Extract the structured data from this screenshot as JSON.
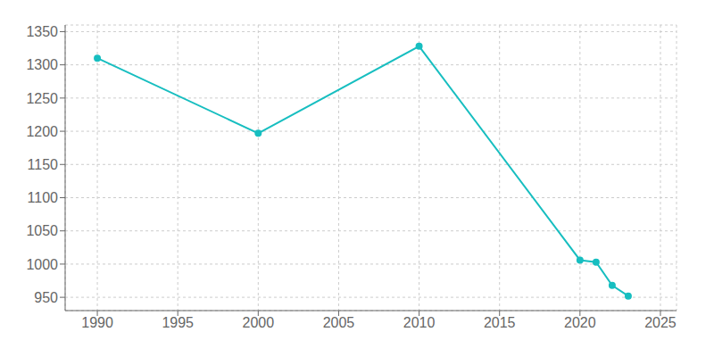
{
  "chart_data": {
    "type": "line",
    "x": [
      1990,
      2000,
      2010,
      2020,
      2021,
      2022,
      2023
    ],
    "values": [
      1310,
      1197,
      1328,
      1006,
      1003,
      968,
      952
    ],
    "color": "#17BEC0",
    "marker": "circle",
    "xlim": [
      1988,
      2026
    ],
    "ylim": [
      930,
      1360
    ],
    "xticks": [
      1990,
      1995,
      2000,
      2005,
      2010,
      2015,
      2020,
      2025
    ],
    "yticks": [
      950,
      1000,
      1050,
      1100,
      1150,
      1200,
      1250,
      1300,
      1350
    ],
    "grid": true
  }
}
